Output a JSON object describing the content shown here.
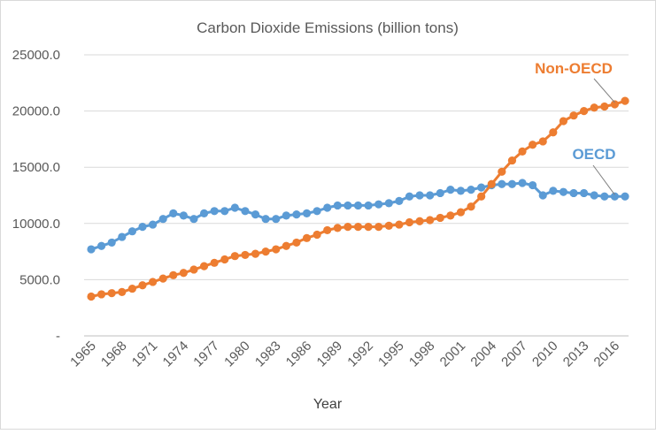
{
  "chart_data": {
    "type": "line",
    "title": "Carbon Dioxide Emissions (billion tons)",
    "xlabel": "Year",
    "ylabel": "",
    "x": [
      1965,
      1966,
      1967,
      1968,
      1969,
      1970,
      1971,
      1972,
      1973,
      1974,
      1975,
      1976,
      1977,
      1978,
      1979,
      1980,
      1981,
      1982,
      1983,
      1984,
      1985,
      1986,
      1987,
      1988,
      1989,
      1990,
      1991,
      1992,
      1993,
      1994,
      1995,
      1996,
      1997,
      1998,
      1999,
      2000,
      2001,
      2002,
      2003,
      2004,
      2005,
      2006,
      2007,
      2008,
      2009,
      2010,
      2011,
      2012,
      2013,
      2014,
      2015,
      2016,
      2017
    ],
    "x_tick_labels": [
      "1965",
      "1968",
      "1971",
      "1974",
      "1977",
      "1980",
      "1983",
      "1986",
      "1989",
      "1992",
      "1995",
      "1998",
      "2001",
      "2004",
      "2007",
      "2010",
      "2013",
      "2016"
    ],
    "y_tick_labels": [
      "-",
      "5000.0",
      "10000.0",
      "15000.0",
      "20000.0",
      "25000.0"
    ],
    "ylim": [
      0,
      25000
    ],
    "grid": "horizontal",
    "series": [
      {
        "name": "OECD",
        "color": "#5b9bd5",
        "values": [
          7700,
          8000,
          8300,
          8800,
          9300,
          9700,
          9900,
          10400,
          10900,
          10700,
          10400,
          10900,
          11100,
          11100,
          11400,
          11100,
          10800,
          10400,
          10400,
          10700,
          10800,
          10900,
          11100,
          11400,
          11600,
          11600,
          11600,
          11600,
          11700,
          11800,
          12000,
          12400,
          12500,
          12500,
          12700,
          13000,
          12900,
          13000,
          13200,
          13400,
          13500,
          13500,
          13600,
          13400,
          12500,
          12900,
          12800,
          12700,
          12700,
          12500,
          12400,
          12400,
          12400
        ]
      },
      {
        "name": "Non-OECD",
        "color": "#ed7d31",
        "values": [
          3500,
          3700,
          3800,
          3900,
          4200,
          4500,
          4800,
          5100,
          5400,
          5600,
          5900,
          6200,
          6500,
          6800,
          7100,
          7200,
          7300,
          7500,
          7700,
          8000,
          8300,
          8700,
          9000,
          9400,
          9600,
          9700,
          9700,
          9700,
          9700,
          9800,
          9900,
          10100,
          10200,
          10300,
          10500,
          10700,
          11000,
          11500,
          12400,
          13500,
          14600,
          15600,
          16400,
          17000,
          17300,
          18100,
          19100,
          19600,
          20000,
          20300,
          20400,
          20600,
          20900
        ]
      }
    ],
    "annotations": [
      "Non-OECD",
      "OECD"
    ]
  }
}
